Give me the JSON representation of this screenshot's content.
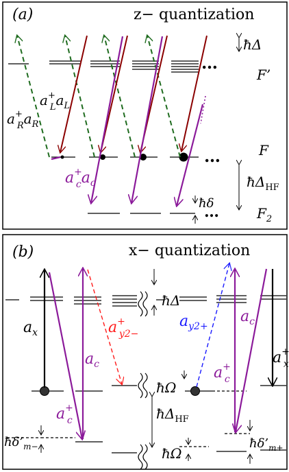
{
  "panel_a": {
    "tag": "(a)",
    "title": "z− quantization",
    "dots": "…",
    "labels": {
      "hbar_delta": "ħΔ",
      "F_prime": "F’",
      "F": "F",
      "hbar_delta_hf": "ħΔ",
      "hf_sub": "HF",
      "hbar_small_delta": "ħδ",
      "F2": "F",
      "F2_sub": "2",
      "aL_op": "a",
      "aL_sup": "+",
      "aL_sub": "L",
      "aL_op2": "a",
      "aL_sub2": "L",
      "aR_op": "a",
      "aR_sup": "+",
      "aR_sub": "R",
      "aR_op2": "a",
      "aR_sub2": "R",
      "ac_op": "a",
      "ac_sup": "+",
      "ac_sub": "c",
      "ac_op2": "a",
      "ac_sub2": "c"
    }
  },
  "panel_b": {
    "tag": "(b)",
    "title": "x− quantization",
    "labels": {
      "hbar_delta": "ħΔ",
      "hbar_omega_top": "ħΩ",
      "hbar_delta_hf": "ħΔ",
      "hf_sub": "HF",
      "hbar_omega_bot": "ħΩ",
      "delta_m_minus": "ħδ’",
      "delta_m_minus_sub": "m−",
      "delta_m_plus": "ħδ’",
      "delta_m_plus_sub": "m+",
      "ax": "a",
      "ax_sub": "x",
      "ac_left": "a",
      "ac_left_sub": "c",
      "ac_plus_left": "a",
      "ac_plus_left_sup": "+",
      "ac_plus_left_sub": "c",
      "ay2m": "a",
      "ay2m_sup": "+",
      "ay2m_sub": "y2−",
      "ay2p": "a",
      "ay2p_sub": "y2+",
      "ac_right": "a",
      "ac_right_sub": "c",
      "ac_plus_right": "a",
      "ac_plus_right_sup": "+",
      "ac_plus_right_sub": "c",
      "ax_plus_right": "a",
      "ax_plus_right_sup": "+",
      "ax_plus_right_sub": "x"
    }
  },
  "colors": {
    "green": "#1e6b1e",
    "darkred": "#8b0000",
    "purple": "#8b1a9a",
    "red": "#ff1a1a",
    "blue": "#1a1aff",
    "black": "#000000"
  }
}
